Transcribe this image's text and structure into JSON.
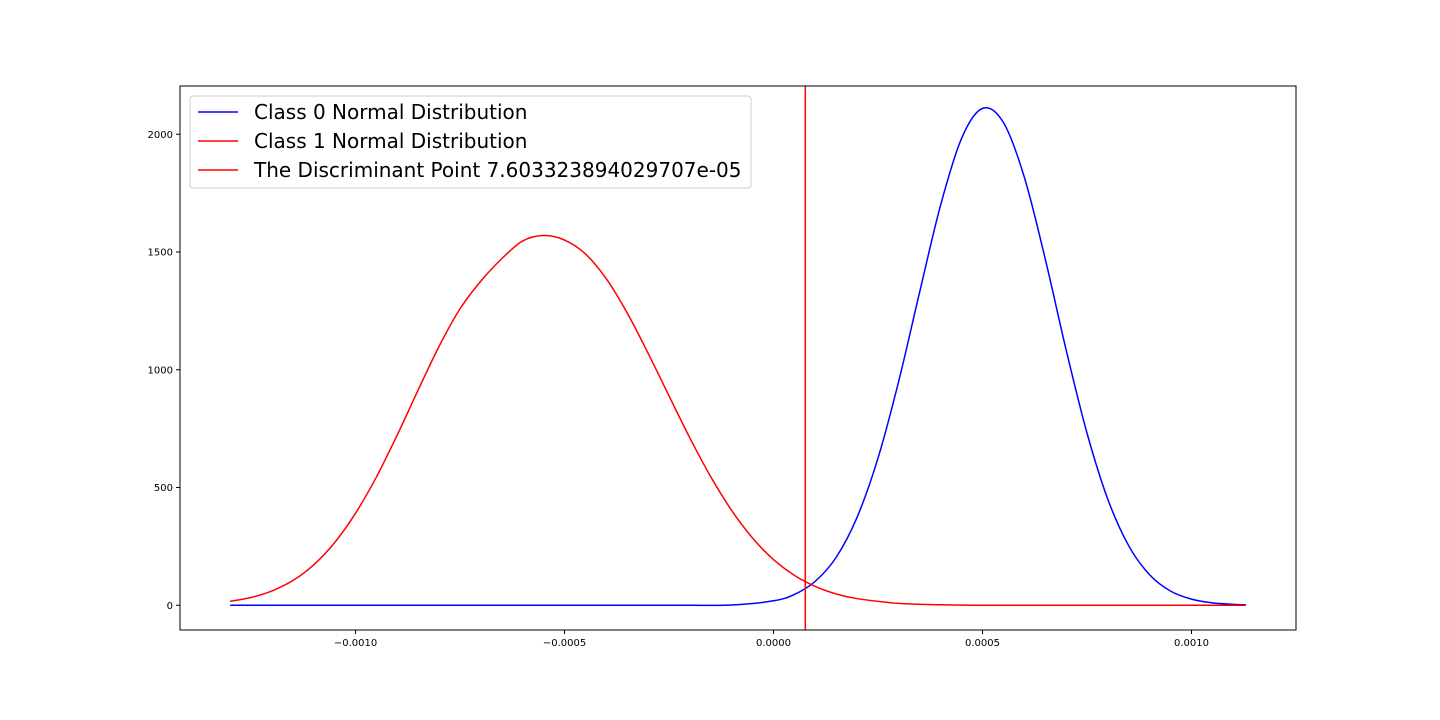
{
  "chart_data": {
    "type": "line",
    "title": "",
    "xlabel": "",
    "ylabel": "",
    "xlim": [
      -0.00142,
      0.00125
    ],
    "ylim": [
      -105,
      2205
    ],
    "grid": false,
    "legend_position": "upper-left",
    "x_ticks": [
      {
        "value": -0.001,
        "label": "−0.0010"
      },
      {
        "value": -0.0005,
        "label": "−0.0005"
      },
      {
        "value": 0.0,
        "label": "0.0000"
      },
      {
        "value": 0.0005,
        "label": "0.0005"
      },
      {
        "value": 0.001,
        "label": "0.0010"
      }
    ],
    "y_ticks": [
      {
        "value": 0,
        "label": "0"
      },
      {
        "value": 500,
        "label": "500"
      },
      {
        "value": 1000,
        "label": "1000"
      },
      {
        "value": 1500,
        "label": "1500"
      },
      {
        "value": 2000,
        "label": "2000"
      }
    ],
    "series": [
      {
        "name": "Class 0 Normal Distribution",
        "color": "#0000ff",
        "x": [
          -0.0013,
          -0.0012,
          -0.0011,
          -0.001,
          -0.0009,
          -0.0008,
          -0.0007,
          -0.0006,
          -0.0005,
          -0.0004,
          -0.0003,
          -0.0002,
          -0.0001,
          0.0,
          5e-05,
          0.0001,
          0.00015,
          0.0002,
          0.00025,
          0.0003,
          0.00035,
          0.0004,
          0.00045,
          0.0005,
          0.00055,
          0.0006,
          0.00065,
          0.0007,
          0.00075,
          0.0008,
          0.00085,
          0.0009,
          0.00095,
          0.001,
          0.00105,
          0.0011,
          0.00113
        ],
        "values": [
          0,
          0,
          0,
          0,
          0,
          0,
          0,
          0,
          0,
          0,
          0,
          0,
          1,
          19,
          46,
          102,
          204,
          374,
          625,
          955,
          1333,
          1701,
          1983,
          2110,
          2050,
          1818,
          1471,
          1085,
          731,
          449,
          252,
          129,
          60,
          26,
          10,
          4,
          2
        ]
      },
      {
        "name": "Class 1 Normal Distribution",
        "color": "#ff0000",
        "x": [
          -0.0013,
          -0.00125,
          -0.0012,
          -0.00115,
          -0.0011,
          -0.00105,
          -0.001,
          -0.00095,
          -0.0009,
          -0.00085,
          -0.0008,
          -0.00075,
          -0.0007,
          -0.00065,
          -0.0006,
          -0.00055,
          -0.0005,
          -0.00045,
          -0.0004,
          -0.00035,
          -0.0003,
          -0.00025,
          -0.0002,
          -0.00015,
          -0.0001,
          -5e-05,
          0.0,
          5e-05,
          0.0001,
          0.00015,
          0.0002,
          0.0003,
          0.0004,
          0.0005,
          0.0007,
          0.0009,
          0.00113
        ],
        "values": [
          17,
          33,
          61,
          105,
          172,
          266,
          391,
          545,
          724,
          915,
          1100,
          1259,
          1377,
          1472,
          1547,
          1570,
          1551,
          1492,
          1386,
          1241,
          1070,
          889,
          710,
          545,
          402,
          285,
          194,
          127,
          80,
          48,
          28,
          8,
          2,
          0,
          0,
          0,
          0
        ]
      }
    ],
    "vertical_line": {
      "name": "The Discriminant Point 7.603323894029707e-05",
      "color": "#ff0000",
      "x": 7.603323894029707e-05
    }
  }
}
